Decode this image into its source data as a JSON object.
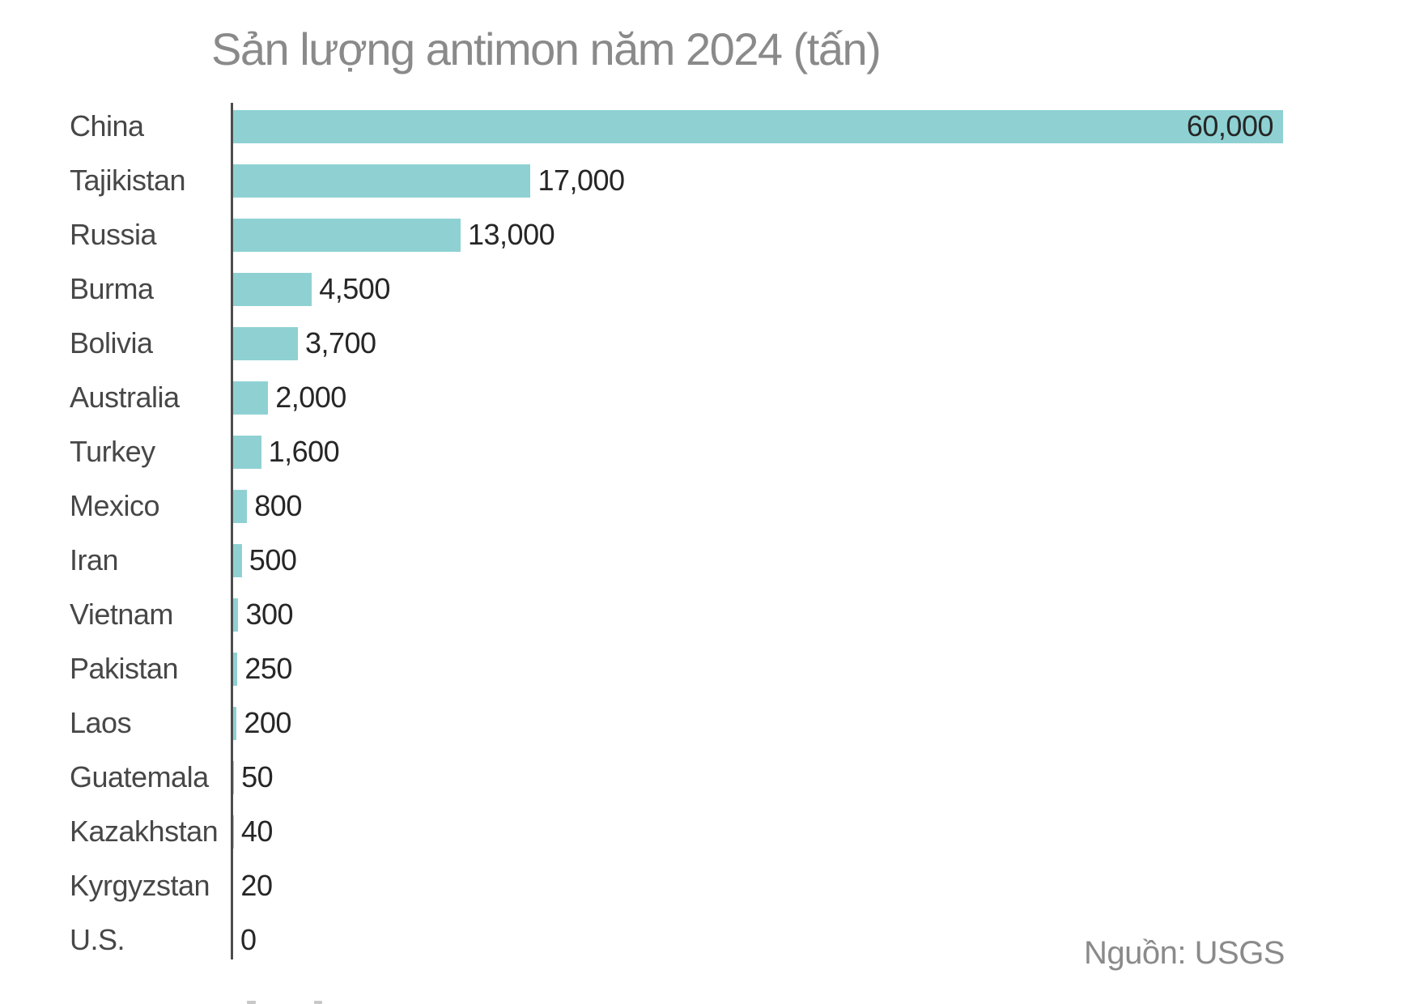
{
  "title": "Sản lượng antimon năm 2024 (tấn)",
  "source": "Nguồn: USGS",
  "chart_data": {
    "type": "bar",
    "orientation": "horizontal",
    "title": "Sản lượng antimon năm 2024 (tấn)",
    "unit": "tấn",
    "source": "Nguồn: USGS",
    "categories": [
      "China",
      "Tajikistan",
      "Russia",
      "Burma",
      "Bolivia",
      "Australia",
      "Turkey",
      "Mexico",
      "Iran",
      "Vietnam",
      "Pakistan",
      "Laos",
      "Guatemala",
      "Kazakhstan",
      "Kyrgyzstan",
      "U.S."
    ],
    "values": [
      60000,
      17000,
      13000,
      4500,
      3700,
      2000,
      1600,
      800,
      500,
      300,
      250,
      200,
      50,
      40,
      20,
      0
    ],
    "value_labels": [
      "60,000",
      "17,000",
      "13,000",
      "4,500",
      "3,700",
      "2,000",
      "1,600",
      "800",
      "500",
      "300",
      "250",
      "200",
      "50",
      "40",
      "20",
      "0"
    ],
    "xlim": [
      0,
      60000
    ],
    "grid": false,
    "legend": false,
    "value_label_placement": "outside, first bar inside right-aligned",
    "colors": {
      "bar": "#8fd1d3",
      "axis": "#4d4d4d",
      "category_label": "#474747",
      "value_label": "#262626",
      "title": "#8a8a8a",
      "source": "#8a8a8a",
      "background": "#ffffff"
    }
  }
}
